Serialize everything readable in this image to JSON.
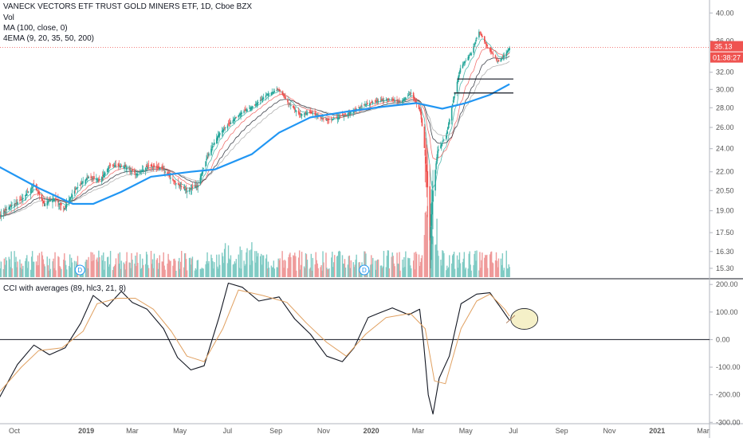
{
  "header": {
    "title": "VANECK VECTORS ETF TRUST GOLD MINERS ETF, 1D, Cboe BZX",
    "legend_lines": [
      "Vol",
      "MA (100, close, 0)",
      "4EMA (9, 20, 35, 50, 200)"
    ],
    "lower_title": "CCI with averages (89, hlc3, 21, 8)"
  },
  "price_label": {
    "value": "35.13",
    "timer": "01:38:27"
  },
  "colors": {
    "background": "#ffffff",
    "candle_up": "#26a69a",
    "candle_down": "#ef5350",
    "ma100": "#2196f3",
    "ema9": "#26a69a",
    "ema20": "#ef5350",
    "ema35": "#131722",
    "ema50": "#9e9e9e",
    "cci_main": "#131722",
    "cci_avg": "#e0a060",
    "price_line": "#ef5350",
    "ellipse_fill": "#f5f0c8"
  },
  "chart_data": [
    {
      "type": "line",
      "name": "price",
      "y_axis_labels": [
        "40.00",
        "36.00",
        "32.00",
        "30.00",
        "28.00",
        "26.00",
        "24.00",
        "22.00",
        "20.50",
        "19.00",
        "17.50",
        "16.30",
        "15.30"
      ],
      "x_axis_labels": [
        "Oct",
        "2019",
        "Mar",
        "May",
        "Jul",
        "Sep",
        "Nov",
        "2020",
        "Mar",
        "May",
        "Jul",
        "Sep",
        "Nov",
        "2021",
        "Mar"
      ],
      "scale": "log",
      "ylim": [
        14.8,
        41.5
      ],
      "last_price": 35.13,
      "close_path": [
        [
          "2018-09-12",
          18.6
        ],
        [
          "2018-09-25",
          19.3
        ],
        [
          "2018-10-10",
          19.8
        ],
        [
          "2018-10-26",
          20.9
        ],
        [
          "2018-11-08",
          19.5
        ],
        [
          "2018-11-20",
          19.9
        ],
        [
          "2018-12-04",
          19.2
        ],
        [
          "2018-12-18",
          20.6
        ],
        [
          "2019-01-04",
          21.6
        ],
        [
          "2019-01-18",
          21.3
        ],
        [
          "2019-02-01",
          22.6
        ],
        [
          "2019-02-20",
          22.4
        ],
        [
          "2019-03-07",
          21.8
        ],
        [
          "2019-03-21",
          22.5
        ],
        [
          "2019-04-08",
          22.3
        ],
        [
          "2019-04-25",
          21.1
        ],
        [
          "2019-05-10",
          20.5
        ],
        [
          "2019-05-24",
          20.9
        ],
        [
          "2019-06-05",
          23.3
        ],
        [
          "2019-06-20",
          25.4
        ],
        [
          "2019-07-05",
          26.5
        ],
        [
          "2019-07-19",
          27.5
        ],
        [
          "2019-08-05",
          28.3
        ],
        [
          "2019-08-20",
          29.4
        ],
        [
          "2019-09-04",
          30.0
        ],
        [
          "2019-09-16",
          28.6
        ],
        [
          "2019-10-01",
          27.3
        ],
        [
          "2019-10-15",
          27.5
        ],
        [
          "2019-11-05",
          26.7
        ],
        [
          "2019-11-20",
          27.0
        ],
        [
          "2019-12-05",
          27.5
        ],
        [
          "2019-12-20",
          28.2
        ],
        [
          "2020-01-08",
          28.7
        ],
        [
          "2020-01-24",
          28.9
        ],
        [
          "2020-02-07",
          28.6
        ],
        [
          "2020-02-21",
          29.6
        ],
        [
          "2020-03-04",
          27.5
        ],
        [
          "2020-03-12",
          22.0
        ],
        [
          "2020-03-16",
          17.0
        ],
        [
          "2020-03-20",
          20.5
        ],
        [
          "2020-03-26",
          23.8
        ],
        [
          "2020-04-06",
          25.2
        ],
        [
          "2020-04-14",
          28.4
        ],
        [
          "2020-04-24",
          32.5
        ],
        [
          "2020-05-08",
          34.4
        ],
        [
          "2020-05-18",
          37.3
        ],
        [
          "2020-05-29",
          35.1
        ],
        [
          "2020-06-12",
          33.3
        ],
        [
          "2020-06-22",
          34.4
        ],
        [
          "2020-06-26",
          35.13
        ]
      ],
      "ma100_path": [
        [
          "2018-09-12",
          22.4
        ],
        [
          "2018-11-01",
          20.7
        ],
        [
          "2018-12-15",
          19.5
        ],
        [
          "2019-01-10",
          19.5
        ],
        [
          "2019-02-15",
          20.4
        ],
        [
          "2019-03-25",
          21.6
        ],
        [
          "2019-05-15",
          22.0
        ],
        [
          "2019-06-15",
          22.2
        ],
        [
          "2019-08-01",
          23.5
        ],
        [
          "2019-09-05",
          25.5
        ],
        [
          "2019-10-15",
          27.0
        ],
        [
          "2019-12-01",
          27.6
        ],
        [
          "2020-01-15",
          28.1
        ],
        [
          "2020-02-28",
          28.5
        ],
        [
          "2020-04-01",
          27.9
        ],
        [
          "2020-05-01",
          28.5
        ],
        [
          "2020-06-01",
          29.4
        ],
        [
          "2020-06-26",
          30.6
        ]
      ],
      "horizontal_levels": [
        {
          "y": 31.2,
          "x_start": "2020-04-20",
          "x_end": "2020-07-01"
        },
        {
          "y": 29.6,
          "x_start": "2020-04-16",
          "x_end": "2020-07-01"
        }
      ],
      "volume_markers": [
        "D",
        "D"
      ]
    },
    {
      "type": "line",
      "name": "CCI with averages (89, hlc3, 21, 8)",
      "y_axis_labels": [
        "200.00",
        "100.00",
        "0.00",
        "-100.00",
        "-200.00",
        "-300.00"
      ],
      "ylim": [
        -305,
        215
      ],
      "zero_line": 0,
      "series": [
        {
          "name": "CCI",
          "values": [
            [
              "2018-09-12",
              -210
            ],
            [
              "2018-10-05",
              -90
            ],
            [
              "2018-10-26",
              -20
            ],
            [
              "2018-11-15",
              -55
            ],
            [
              "2018-12-05",
              -30
            ],
            [
              "2018-12-25",
              60
            ],
            [
              "2019-01-10",
              160
            ],
            [
              "2019-01-28",
              120
            ],
            [
              "2019-02-15",
              175
            ],
            [
              "2019-03-01",
              135
            ],
            [
              "2019-03-20",
              110
            ],
            [
              "2019-04-10",
              40
            ],
            [
              "2019-04-28",
              -65
            ],
            [
              "2019-05-15",
              -110
            ],
            [
              "2019-06-01",
              -95
            ],
            [
              "2019-06-20",
              80
            ],
            [
              "2019-07-02",
              205
            ],
            [
              "2019-07-20",
              190
            ],
            [
              "2019-08-10",
              140
            ],
            [
              "2019-09-05",
              155
            ],
            [
              "2019-09-25",
              75
            ],
            [
              "2019-10-15",
              20
            ],
            [
              "2019-11-05",
              -60
            ],
            [
              "2019-11-25",
              -80
            ],
            [
              "2019-12-10",
              -30
            ],
            [
              "2019-12-28",
              80
            ],
            [
              "2020-01-10",
              95
            ],
            [
              "2020-01-28",
              115
            ],
            [
              "2020-02-18",
              90
            ],
            [
              "2020-03-03",
              110
            ],
            [
              "2020-03-08",
              -10
            ],
            [
              "2020-03-14",
              -200
            ],
            [
              "2020-03-20",
              -270
            ],
            [
              "2020-03-28",
              -140
            ],
            [
              "2020-04-10",
              -60
            ],
            [
              "2020-04-25",
              130
            ],
            [
              "2020-05-15",
              165
            ],
            [
              "2020-06-01",
              170
            ],
            [
              "2020-06-15",
              115
            ],
            [
              "2020-06-26",
              70
            ]
          ]
        },
        {
          "name": "CCI average",
          "values": [
            [
              "2018-09-12",
              -190
            ],
            [
              "2018-10-10",
              -100
            ],
            [
              "2018-11-01",
              -40
            ],
            [
              "2018-12-01",
              -30
            ],
            [
              "2018-12-28",
              30
            ],
            [
              "2019-01-15",
              130
            ],
            [
              "2019-02-10",
              150
            ],
            [
              "2019-03-05",
              150
            ],
            [
              "2019-03-28",
              110
            ],
            [
              "2019-04-20",
              30
            ],
            [
              "2019-05-10",
              -60
            ],
            [
              "2019-06-01",
              -80
            ],
            [
              "2019-06-25",
              40
            ],
            [
              "2019-07-15",
              180
            ],
            [
              "2019-08-15",
              160
            ],
            [
              "2019-09-15",
              135
            ],
            [
              "2019-10-10",
              60
            ],
            [
              "2019-11-05",
              -10
            ],
            [
              "2019-11-30",
              -60
            ],
            [
              "2019-12-25",
              20
            ],
            [
              "2020-01-20",
              80
            ],
            [
              "2020-02-20",
              95
            ],
            [
              "2020-03-10",
              40
            ],
            [
              "2020-03-22",
              -150
            ],
            [
              "2020-04-05",
              -160
            ],
            [
              "2020-04-25",
              40
            ],
            [
              "2020-05-15",
              140
            ],
            [
              "2020-06-01",
              165
            ],
            [
              "2020-06-20",
              110
            ],
            [
              "2020-06-26",
              85
            ]
          ]
        }
      ]
    }
  ]
}
